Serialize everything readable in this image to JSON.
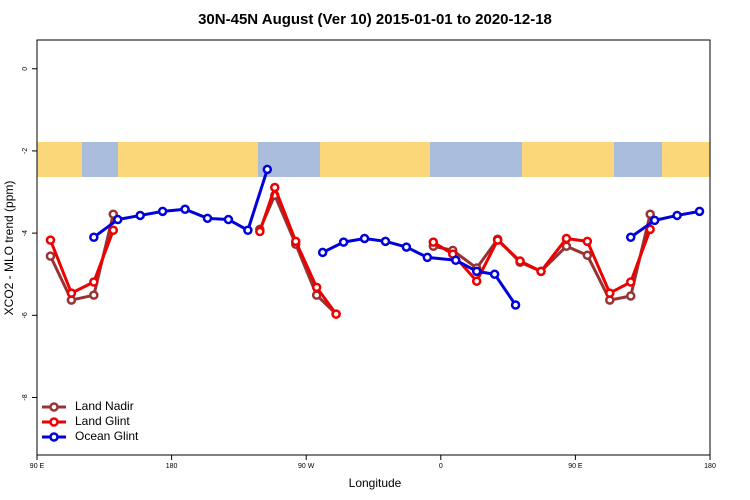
{
  "chart_data": {
    "type": "line",
    "title": "30N-45N August (Ver 10)   2015-01-01 to 2020-12-18",
    "xlabel": "Longitude",
    "ylabel": "XCO2 - MLO trend (ppm)",
    "xlim": [
      90,
      540
    ],
    "ylim": [
      -9.4,
      0.7
    ],
    "xticks": [
      {
        "value": 90,
        "label": "90 E"
      },
      {
        "value": 180,
        "label": "180"
      },
      {
        "value": 270,
        "label": "90 W"
      },
      {
        "value": 360,
        "label": "0"
      },
      {
        "value": 450,
        "label": "90 E"
      },
      {
        "value": 540,
        "label": "180"
      }
    ],
    "yticks": [
      0,
      -2,
      -4,
      -6,
      -8
    ],
    "legend": "bottom-left",
    "series": [
      {
        "name": "Land Nadir",
        "color": "#993333",
        "x": [
          99,
          113,
          128,
          141,
          null,
          239,
          249,
          263,
          277,
          290,
          null,
          355,
          368,
          384,
          398,
          413,
          427,
          444,
          458,
          473,
          487,
          500
        ],
        "values": [
          -4.56,
          -5.63,
          -5.51,
          -3.54,
          null,
          -3.91,
          -3.08,
          -4.27,
          -5.51,
          -5.97,
          null,
          -4.32,
          -4.42,
          -4.85,
          -4.15,
          -4.71,
          -4.93,
          -4.32,
          -4.54,
          -5.63,
          -5.53,
          -3.54
        ]
      },
      {
        "name": "Land Glint",
        "color": "#ee0000",
        "x": [
          99,
          113,
          128,
          141,
          null,
          239,
          249,
          263,
          277,
          290,
          null,
          355,
          368,
          384,
          398,
          413,
          427,
          444,
          458,
          473,
          487,
          500
        ],
        "values": [
          -4.17,
          -5.46,
          -5.19,
          -3.93,
          null,
          -3.96,
          -2.89,
          -4.2,
          -5.32,
          -5.97,
          null,
          -4.22,
          -4.51,
          -5.17,
          -4.17,
          -4.68,
          -4.93,
          -4.13,
          -4.2,
          -5.46,
          -5.19,
          -3.91
        ]
      },
      {
        "name": "Ocean Glint",
        "color": "#0000dd",
        "x": [
          128,
          144,
          159,
          174,
          189,
          204,
          218,
          231,
          244,
          null,
          281,
          295,
          309,
          323,
          337,
          351,
          370,
          384,
          396,
          410,
          null,
          487,
          503,
          518,
          533
        ],
        "values": [
          -4.1,
          -3.67,
          -3.57,
          -3.47,
          -3.42,
          -3.64,
          -3.67,
          -3.93,
          -2.45,
          null,
          -4.47,
          -4.22,
          -4.13,
          -4.2,
          -4.34,
          -4.59,
          -4.66,
          -4.93,
          -5.0,
          -5.75,
          null,
          -4.1,
          -3.69,
          -3.57,
          -3.47
        ]
      }
    ]
  }
}
